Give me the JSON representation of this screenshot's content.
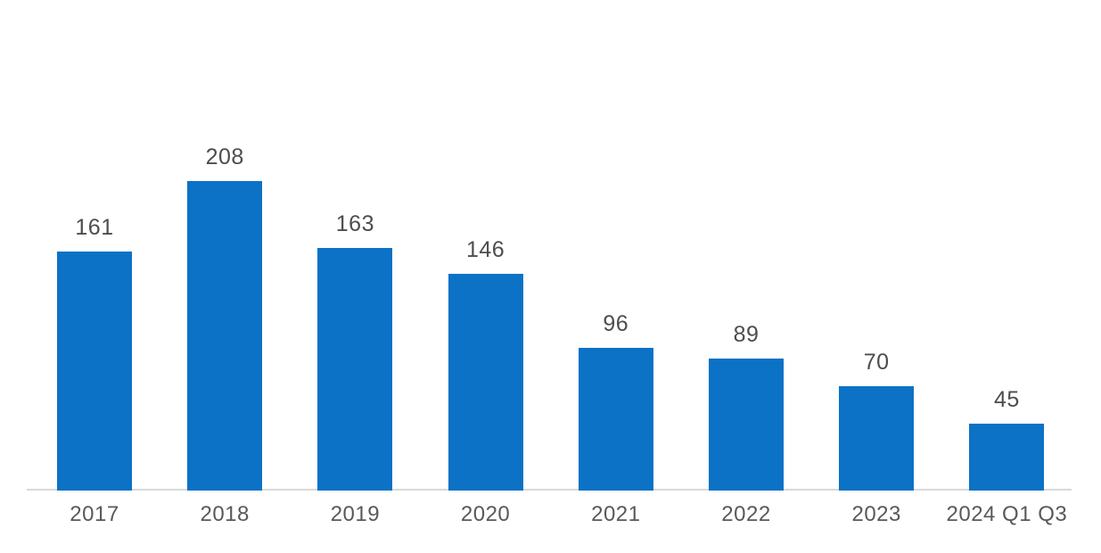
{
  "page": {
    "background_color": "#ffffff"
  },
  "chart_data": {
    "type": "bar",
    "title": "",
    "xlabel": "",
    "ylabel": "",
    "categories": [
      "2017",
      "2018",
      "2019",
      "2020",
      "2021",
      "2022",
      "2023",
      "2024 Q1 Q3"
    ],
    "values": [
      161,
      208,
      163,
      146,
      96,
      89,
      70,
      45
    ],
    "ylim": [
      0,
      230
    ],
    "grid": false,
    "legend": "none",
    "data_labels": true,
    "bar_color": "#0b72c6",
    "value_label_color": "#4d4d4d",
    "axis_label_color": "#595959",
    "axis_line_color": "#d9d9d9"
  }
}
